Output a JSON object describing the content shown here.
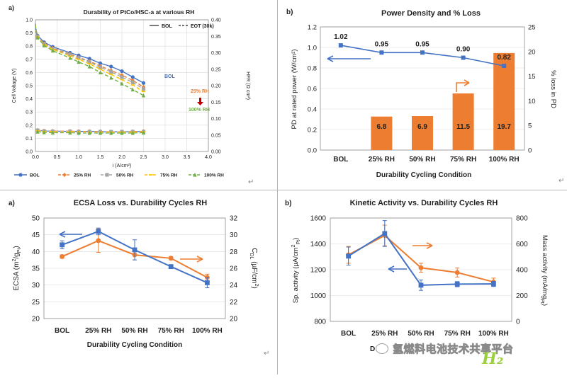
{
  "colors": {
    "blue": "#4472C4",
    "orange": "#ED7D31",
    "gray": "#A5A5A5",
    "yellow": "#FFC000",
    "green": "#70AD47",
    "grid": "#D9D9D9",
    "frame": "#B5B5B5",
    "red_arrow": "#C00000"
  },
  "panels": {
    "top_left_letter": "a)",
    "top_right_letter": "b)",
    "bottom_left_letter": "a)",
    "bottom_right_letter": "b)",
    "return_mark": "↵"
  },
  "watermark": {
    "text": "氢燃料电池技术共享平台",
    "logo_text": "H₂",
    "partial_label": "D"
  },
  "chart_data": [
    {
      "id": "polarization",
      "type": "line",
      "title": "Durability of PtCo/HSC-a at various RH",
      "xlabel": "i (A/cm²)",
      "ylabel": "Cell Voltage (V)",
      "y2label": "HFR (Ω cm²)",
      "xlim": [
        0,
        4.0
      ],
      "ylim": [
        0,
        1.0
      ],
      "y2lim": [
        0,
        0.4
      ],
      "xticks": [
        "0.0",
        "0.5",
        "1.0",
        "1.5",
        "2.0",
        "2.5",
        "3.0",
        "3.5",
        "4.0"
      ],
      "yticks": [
        "0.0",
        "0.1",
        "0.2",
        "0.3",
        "0.4",
        "0.5",
        "0.6",
        "0.7",
        "0.8",
        "0.9",
        "1.0"
      ],
      "y2ticks": [
        "0.00",
        "0.05",
        "0.10",
        "0.15",
        "0.20",
        "0.25",
        "0.30",
        "0.35",
        "0.40"
      ],
      "style_legend": [
        "BOL",
        "EOT (30k)"
      ],
      "legend": [
        "BOL",
        "25% RH",
        "50% RH",
        "75% RH",
        "100% RH"
      ],
      "annotations": [
        "BOL",
        "25% RH",
        "100% RH"
      ],
      "x": [
        0.0,
        0.01,
        0.05,
        0.2,
        0.4,
        0.8,
        1.0,
        1.25,
        1.5,
        1.75,
        2.0,
        2.25,
        2.5
      ],
      "series": [
        {
          "name": "BOL",
          "color": "#4472C4",
          "values": [
            0.97,
            0.93,
            0.88,
            0.83,
            0.795,
            0.75,
            0.73,
            0.705,
            0.67,
            0.645,
            0.61,
            0.565,
            0.52
          ]
        },
        {
          "name": "25% RH",
          "color": "#ED7D31",
          "values": [
            0.965,
            0.925,
            0.875,
            0.82,
            0.785,
            0.74,
            0.715,
            0.685,
            0.65,
            0.615,
            0.58,
            0.54,
            0.49
          ]
        },
        {
          "name": "50% RH",
          "color": "#A5A5A5",
          "values": [
            0.965,
            0.925,
            0.873,
            0.817,
            0.78,
            0.735,
            0.71,
            0.678,
            0.64,
            0.605,
            0.565,
            0.525,
            0.475
          ]
        },
        {
          "name": "75% RH",
          "color": "#FFC000",
          "values": [
            0.963,
            0.922,
            0.87,
            0.812,
            0.775,
            0.725,
            0.7,
            0.665,
            0.625,
            0.585,
            0.545,
            0.505,
            0.455
          ]
        },
        {
          "name": "100% RH",
          "color": "#70AD47",
          "values": [
            0.96,
            0.92,
            0.865,
            0.805,
            0.765,
            0.71,
            0.68,
            0.645,
            0.6,
            0.56,
            0.515,
            0.47,
            0.425
          ]
        }
      ],
      "hfr_x": [
        0.05,
        0.2,
        0.4,
        0.8,
        1.0,
        1.25,
        1.5,
        1.75,
        2.0,
        2.25,
        2.5
      ],
      "hfr_series": [
        {
          "name": "BOL",
          "color": "#4472C4",
          "values": [
            0.064,
            0.062,
            0.062,
            0.061,
            0.061,
            0.061,
            0.06,
            0.06,
            0.06,
            0.06,
            0.061
          ]
        },
        {
          "name": "25% RH",
          "color": "#ED7D31",
          "values": [
            0.065,
            0.063,
            0.062,
            0.062,
            0.061,
            0.061,
            0.061,
            0.06,
            0.06,
            0.061,
            0.061
          ]
        },
        {
          "name": "50% RH",
          "color": "#A5A5A5",
          "values": [
            0.064,
            0.062,
            0.061,
            0.061,
            0.06,
            0.06,
            0.06,
            0.06,
            0.06,
            0.06,
            0.06
          ]
        },
        {
          "name": "75% RH",
          "color": "#FFC000",
          "values": [
            0.063,
            0.061,
            0.06,
            0.06,
            0.06,
            0.059,
            0.059,
            0.059,
            0.059,
            0.059,
            0.06
          ]
        },
        {
          "name": "100% RH",
          "color": "#70AD47",
          "values": [
            0.06,
            0.058,
            0.057,
            0.057,
            0.056,
            0.056,
            0.056,
            0.056,
            0.056,
            0.056,
            0.057
          ]
        }
      ]
    },
    {
      "id": "power_density",
      "type": "bar",
      "title": "Power Density and % Loss",
      "xlabel": "Durability Cycling Condition",
      "ylabel": "PD at rated power (W/cm²)",
      "y2label": "% loss in PD",
      "categories": [
        "BOL",
        "25% RH",
        "50% RH",
        "75% RH",
        "100% RH"
      ],
      "ylim": [
        0,
        1.2
      ],
      "y2lim": [
        0,
        25
      ],
      "yticks": [
        "0.0",
        "0.2",
        "0.4",
        "0.6",
        "0.8",
        "1.0",
        "1.2"
      ],
      "y2ticks": [
        "0",
        "5",
        "10",
        "15",
        "20",
        "25"
      ],
      "line_values": [
        1.02,
        0.95,
        0.95,
        0.9,
        0.82
      ],
      "line_labels": [
        "1.02",
        "0.95",
        "0.95",
        "0.90",
        "0.82"
      ],
      "bar_values": [
        null,
        6.8,
        6.9,
        11.5,
        19.7
      ],
      "bar_labels": [
        "",
        "6.8",
        "6.9",
        "11.5",
        "19.7"
      ]
    },
    {
      "id": "ecsa",
      "type": "line",
      "title": "ECSA Loss vs. Durability Cycles RH",
      "xlabel": "Durability Cycling Condition",
      "ylabel": "ECSA (m²/g_Pt)",
      "y2label": "C_DL (µF/cm²)",
      "categories": [
        "BOL",
        "25% RH",
        "50% RH",
        "75% RH",
        "100% RH"
      ],
      "ylim": [
        20,
        50
      ],
      "y2lim": [
        20,
        32
      ],
      "yticks": [
        "20",
        "25",
        "30",
        "35",
        "40",
        "45",
        "50"
      ],
      "y2ticks": [
        "20",
        "22",
        "24",
        "26",
        "28",
        "30",
        "32"
      ],
      "series": [
        {
          "name": "ECSA",
          "axis": "left",
          "color": "#4472C4",
          "values": [
            42,
            46,
            40.5,
            35.5,
            30.7
          ],
          "err": [
            1.2,
            1.0,
            3.0,
            0.5,
            1.5
          ]
        },
        {
          "name": "C_DL",
          "axis": "right",
          "color": "#ED7D31",
          "values": [
            27.4,
            29.3,
            27.6,
            27.2,
            24.9
          ],
          "err": [
            0.2,
            1.4,
            0.6,
            0.2,
            0.4
          ]
        }
      ]
    },
    {
      "id": "kinetic",
      "type": "line",
      "title": "Kinetic Activity vs. Durability Cycles RH",
      "xlabel": "Durability Cycling Condition",
      "ylabel": "Sp. activity (µA/cm²_Pt)",
      "y2label": "Mass activity (mA/mg_Pt)",
      "categories": [
        "BOL",
        "25% RH",
        "50% RH",
        "75% RH",
        "100% RH"
      ],
      "ylim": [
        800,
        1600
      ],
      "y2lim": [
        0,
        800
      ],
      "yticks": [
        "800",
        "1000",
        "1200",
        "1400",
        "1600"
      ],
      "y2ticks": [
        "0",
        "200",
        "400",
        "600",
        "800"
      ],
      "series": [
        {
          "name": "Sp. activity",
          "axis": "left",
          "color": "#4472C4",
          "values": [
            1305,
            1480,
            1080,
            1088,
            1090
          ],
          "err": [
            70,
            100,
            40,
            20,
            20
          ]
        },
        {
          "name": "Mass activity",
          "axis": "right",
          "color": "#ED7D31",
          "values": [
            515,
            665,
            415,
            378,
            305
          ],
          "err": [
            65,
            80,
            35,
            35,
            30
          ]
        }
      ]
    }
  ]
}
